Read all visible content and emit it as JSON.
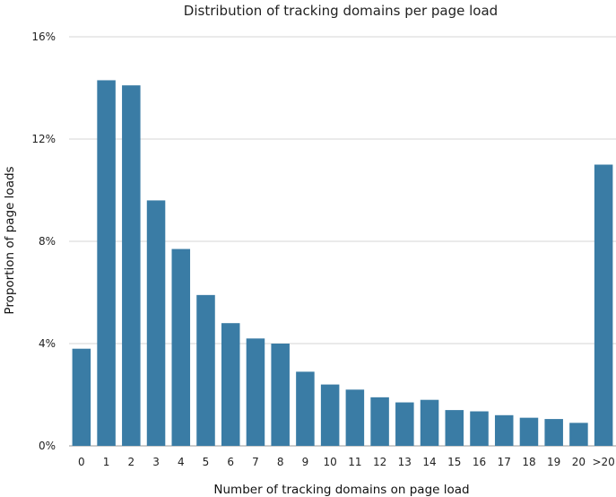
{
  "chart_data": {
    "type": "bar",
    "title": "Distribution of tracking domains per page load",
    "xlabel": "Number of tracking domains on page load",
    "ylabel": "Proportion of page loads",
    "categories": [
      "0",
      "1",
      "2",
      "3",
      "4",
      "5",
      "6",
      "7",
      "8",
      "9",
      "10",
      "11",
      "12",
      "13",
      "14",
      "15",
      "16",
      "17",
      "18",
      "19",
      "20",
      ">20"
    ],
    "values": [
      3.8,
      14.3,
      14.1,
      9.6,
      7.7,
      5.9,
      4.8,
      4.2,
      4.0,
      2.9,
      2.4,
      2.2,
      1.9,
      1.7,
      1.8,
      1.4,
      1.35,
      1.2,
      1.1,
      1.05,
      0.9,
      11.0
    ],
    "yticks": [
      0,
      4,
      8,
      12,
      16
    ],
    "ytick_labels": [
      "0%",
      "4%",
      "8%",
      "12%",
      "16%"
    ],
    "ylim": [
      0,
      16
    ],
    "grid": true,
    "bar_color": "#3a7ca5"
  }
}
